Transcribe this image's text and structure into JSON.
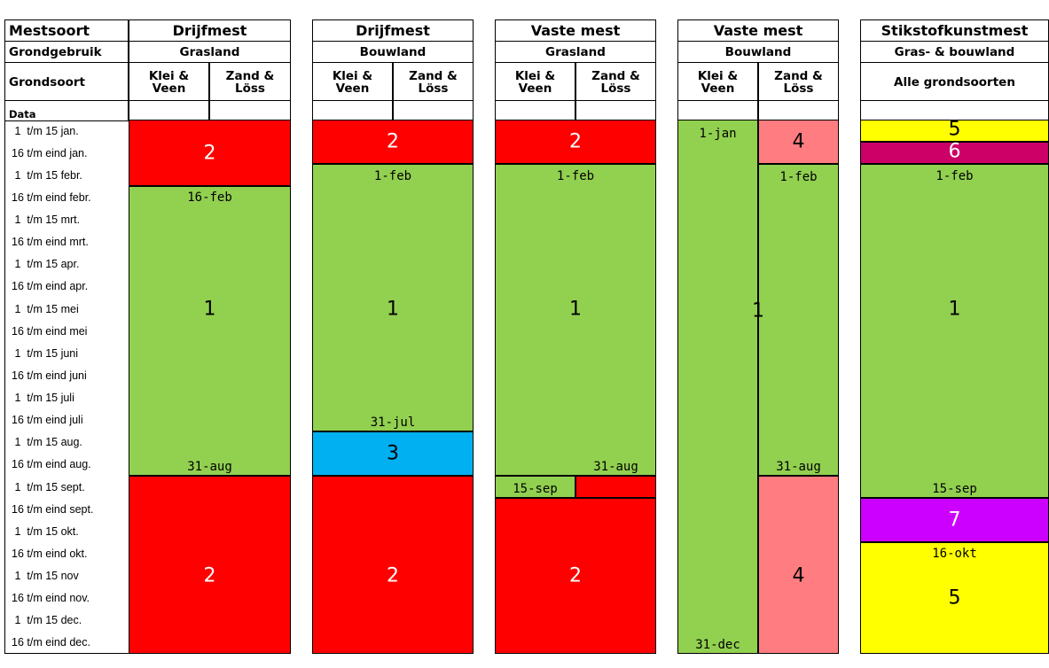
{
  "header": {
    "mestsoort": "Mestsoort",
    "grondgebruik": "Grondgebruik",
    "grondsoort": "Grondsoort",
    "data": "Data"
  },
  "columns": [
    {
      "mestsoort": "Drijfmest",
      "grondgebruik": "Grasland",
      "sub": [
        "Klei &\nVeen",
        "Zand &\nLöss"
      ]
    },
    {
      "mestsoort": "Drijfmest",
      "grondgebruik": "Bouwland",
      "sub": [
        "Klei &\nVeen",
        "Zand &\nLöss"
      ]
    },
    {
      "mestsoort": "Vaste mest",
      "grondgebruik": "Grasland",
      "sub": [
        "Klei &\nVeen",
        "Zand &\nLöss"
      ]
    },
    {
      "mestsoort": "Vaste mest",
      "grondgebruik": "Bouwland",
      "sub": [
        "Klei &\nVeen",
        "Zand &\nLöss"
      ]
    },
    {
      "mestsoort": "Stikstofkunstmest",
      "grondgebruik": "Gras- & bouwland",
      "sub": [
        "Alle grondsoorten"
      ]
    }
  ],
  "periods": [
    " 1  t/m 15 jan.",
    "16 t/m eind jan.",
    " 1  t/m 15 febr.",
    "16 t/m eind febr.",
    " 1  t/m 15 mrt.",
    "16 t/m eind mrt.",
    " 1  t/m 15 apr.",
    "16 t/m eind apr.",
    " 1  t/m 15 mei",
    "16 t/m eind mei",
    " 1  t/m 15 juni",
    "16 t/m eind juni",
    " 1  t/m 15 juli",
    "16 t/m eind juli",
    " 1  t/m 15 aug.",
    "16 t/m eind aug.",
    " 1  t/m 15 sept.",
    "16 t/m eind sept.",
    " 1  t/m 15 okt.",
    "16 t/m eind okt.",
    " 1  t/m 15 nov",
    "16 t/m eind nov.",
    " 1  t/m 15 dec.",
    "16 t/m eind dec."
  ],
  "colors": {
    "1": "#92d050",
    "2": "#ff0000",
    "3": "#00b0f0",
    "4": "#ff7c80",
    "5": "#ffff00",
    "6": "#cc0066",
    "7": "#cc00ff"
  },
  "blocks": [
    {
      "col": 0,
      "sub": "full",
      "from": 0,
      "to": 3,
      "code": "2"
    },
    {
      "col": 0,
      "sub": "full",
      "from": 3,
      "to": 16,
      "code": "1"
    },
    {
      "col": 0,
      "sub": "full",
      "from": 16,
      "to": 24,
      "code": "2"
    },
    {
      "col": 1,
      "sub": "full",
      "from": 0,
      "to": 2,
      "code": "2"
    },
    {
      "col": 1,
      "sub": "full",
      "from": 2,
      "to": 14,
      "code": "1"
    },
    {
      "col": 1,
      "sub": "full",
      "from": 14,
      "to": 16,
      "code": "3"
    },
    {
      "col": 1,
      "sub": "full",
      "from": 16,
      "to": 24,
      "code": "2"
    },
    {
      "col": 2,
      "sub": "full",
      "from": 0,
      "to": 2,
      "code": "2"
    },
    {
      "col": 2,
      "sub": "full",
      "from": 2,
      "to": 16,
      "code": "1"
    },
    {
      "col": 2,
      "sub": "left",
      "from": 16,
      "to": 17,
      "code": "1"
    },
    {
      "col": 2,
      "sub": "right",
      "from": 16,
      "to": 17,
      "code": "2"
    },
    {
      "col": 2,
      "sub": "full",
      "from": 17,
      "to": 24,
      "code": "2"
    },
    {
      "col": 3,
      "sub": "left",
      "from": 0,
      "to": 24,
      "code": "1"
    },
    {
      "col": 3,
      "sub": "right",
      "from": 0,
      "to": 2,
      "code": "4"
    },
    {
      "col": 3,
      "sub": "right",
      "from": 2,
      "to": 16,
      "code": "1"
    },
    {
      "col": 3,
      "sub": "right",
      "from": 16,
      "to": 24,
      "code": "4"
    },
    {
      "col": 4,
      "sub": "full",
      "from": 0,
      "to": 1,
      "code": "5"
    },
    {
      "col": 4,
      "sub": "full",
      "from": 1,
      "to": 2,
      "code": "6"
    },
    {
      "col": 4,
      "sub": "full",
      "from": 2,
      "to": 17,
      "code": "1"
    },
    {
      "col": 4,
      "sub": "full",
      "from": 17,
      "to": 19,
      "code": "7"
    },
    {
      "col": 4,
      "sub": "full",
      "from": 19,
      "to": 24,
      "code": "5"
    }
  ],
  "numbers": [
    {
      "col": 0,
      "sub": "full",
      "row": 1.5,
      "text": "2",
      "white": true
    },
    {
      "col": 0,
      "sub": "full",
      "row": 8.5,
      "text": "1"
    },
    {
      "col": 0,
      "sub": "full",
      "row": 20.5,
      "text": "2",
      "white": true
    },
    {
      "col": 1,
      "sub": "full",
      "row": 1.0,
      "text": "2",
      "white": true
    },
    {
      "col": 1,
      "sub": "full",
      "row": 8.5,
      "text": "1"
    },
    {
      "col": 1,
      "sub": "full",
      "row": 15.0,
      "text": "3"
    },
    {
      "col": 1,
      "sub": "full",
      "row": 20.5,
      "text": "2",
      "white": true
    },
    {
      "col": 2,
      "sub": "full",
      "row": 1.0,
      "text": "2",
      "white": true
    },
    {
      "col": 2,
      "sub": "full",
      "row": 8.5,
      "text": "1"
    },
    {
      "col": 2,
      "sub": "full",
      "row": 20.5,
      "text": "2",
      "white": true
    },
    {
      "col": 3,
      "sub": "right",
      "row": 1.0,
      "text": "4"
    },
    {
      "col": 3,
      "sub": "full",
      "row": 8.6,
      "text": "1"
    },
    {
      "col": 3,
      "sub": "right",
      "row": 20.5,
      "text": "4"
    },
    {
      "col": 4,
      "sub": "full",
      "row": 0.45,
      "text": "5"
    },
    {
      "col": 4,
      "sub": "full",
      "row": 1.45,
      "text": "6",
      "white": true
    },
    {
      "col": 4,
      "sub": "full",
      "row": 8.5,
      "text": "1"
    },
    {
      "col": 4,
      "sub": "full",
      "row": 18.0,
      "text": "7",
      "white": true
    },
    {
      "col": 4,
      "sub": "full",
      "row": 21.5,
      "text": "5"
    }
  ],
  "dates": [
    {
      "col": 0,
      "sub": "full",
      "row": 3.5,
      "text": "16-feb"
    },
    {
      "col": 0,
      "sub": "full",
      "row": 15.6,
      "text": "31-aug"
    },
    {
      "col": 1,
      "sub": "full",
      "row": 2.55,
      "text": "1-feb"
    },
    {
      "col": 1,
      "sub": "full",
      "row": 13.6,
      "text": "31-jul"
    },
    {
      "col": 2,
      "sub": "full",
      "row": 2.55,
      "text": "1-feb"
    },
    {
      "col": 2,
      "sub": "right",
      "row": 15.6,
      "text": "31-aug"
    },
    {
      "col": 2,
      "sub": "left",
      "row": 16.6,
      "text": "15-sep"
    },
    {
      "col": 3,
      "sub": "left",
      "row": 0.65,
      "text": "1-jan"
    },
    {
      "col": 3,
      "sub": "right",
      "row": 2.6,
      "text": "1-feb"
    },
    {
      "col": 3,
      "sub": "right",
      "row": 15.6,
      "text": "31-aug"
    },
    {
      "col": 3,
      "sub": "left",
      "row": 23.6,
      "text": "31-dec"
    },
    {
      "col": 4,
      "sub": "full",
      "row": 2.55,
      "text": "1-feb"
    },
    {
      "col": 4,
      "sub": "full",
      "row": 16.6,
      "text": "15-sep"
    },
    {
      "col": 4,
      "sub": "full",
      "row": 19.5,
      "text": "16-okt"
    }
  ]
}
